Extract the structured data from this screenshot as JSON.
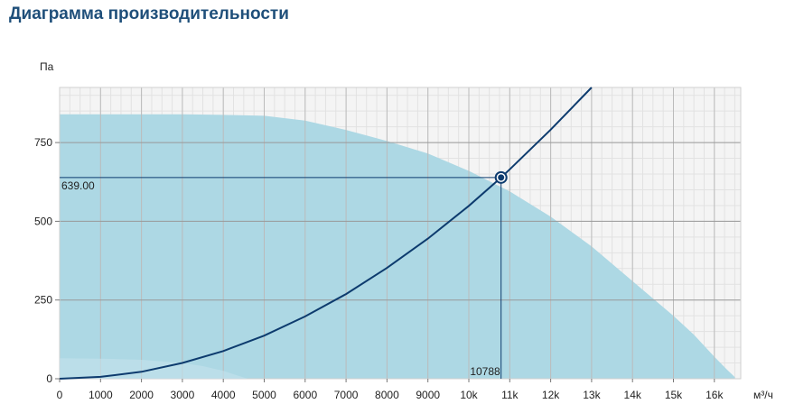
{
  "page": {
    "title": "Диаграмма производительности"
  },
  "chart_data": {
    "type": "area",
    "title": "Диаграмма производительности",
    "xlabel": "м³/ч",
    "ylabel": "Па",
    "xlim": [
      0,
      16700
    ],
    "ylim": [
      0,
      925
    ],
    "grid": true,
    "x_ticks": [
      0,
      1000,
      2000,
      3000,
      4000,
      5000,
      6000,
      7000,
      8000,
      9000,
      10000,
      11000,
      12000,
      13000,
      14000,
      15000,
      16000
    ],
    "x_tick_labels": [
      "0",
      "1000",
      "2000",
      "3000",
      "4000",
      "5000",
      "6000",
      "7000",
      "8000",
      "9000",
      "10k",
      "11k",
      "12k",
      "13k",
      "14k",
      "15k",
      "16k"
    ],
    "y_ticks": [
      0,
      250,
      500,
      750
    ],
    "y_tick_labels": [
      "0",
      "250",
      "500",
      "750"
    ],
    "operating_range_upper": {
      "x": [
        0,
        1000,
        2000,
        3000,
        4000,
        5000,
        6000,
        7000,
        8000,
        9000,
        10000,
        11000,
        12000,
        13000,
        14000,
        15000,
        15500,
        16000,
        16300,
        16500
      ],
      "y": [
        840,
        840,
        840,
        840,
        838,
        835,
        820,
        790,
        755,
        715,
        660,
        595,
        515,
        420,
        310,
        200,
        140,
        70,
        30,
        5
      ]
    },
    "operating_range_lower": {
      "x": [
        0,
        1000,
        2000,
        3000,
        3500,
        4000,
        4300,
        4600
      ],
      "y": [
        65,
        64,
        60,
        50,
        40,
        25,
        12,
        0
      ]
    },
    "system_curve": {
      "x": [
        0,
        1000,
        2000,
        3000,
        4000,
        5000,
        6000,
        7000,
        8000,
        9000,
        10000,
        10788,
        11000,
        12000,
        12500,
        13000
      ],
      "y": [
        0,
        6,
        22,
        50,
        88,
        137,
        198,
        269,
        352,
        445,
        549,
        639,
        665,
        791,
        858,
        925
      ]
    },
    "operating_point": {
      "x": 10788,
      "y": 639.0,
      "x_label": "10788",
      "y_label": "639.00"
    }
  },
  "colors": {
    "title": "#1f4f7a",
    "plot_bg": "#f4f4f4",
    "area": "#add8e4",
    "curve": "#0d3b6e",
    "grid": "#cfcfcf",
    "grid_major": "#999999"
  }
}
